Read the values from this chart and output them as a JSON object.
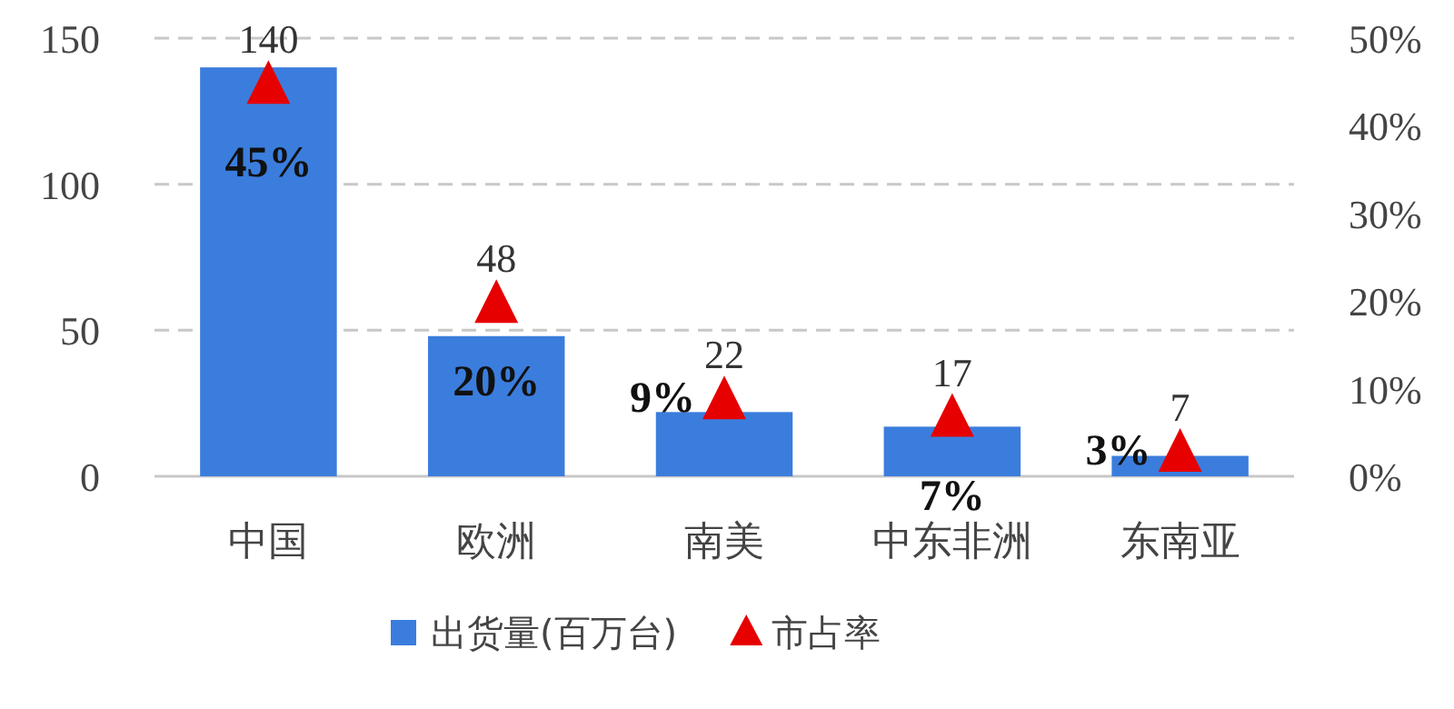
{
  "chart_data": {
    "type": "bar",
    "categories": [
      "中国",
      "欧洲",
      "南美",
      "中东非洲",
      "东南亚"
    ],
    "series": [
      {
        "name": "出货量(百万台)",
        "color": "#3b7ddd",
        "values": [
          140,
          48,
          22,
          17,
          7
        ],
        "value_labels": [
          "140",
          "48",
          "22",
          "17",
          "7"
        ]
      },
      {
        "name": "市占率",
        "type": "scatter",
        "axis": "y2",
        "marker": "triangle",
        "color": "#e60000",
        "values": [
          45,
          20,
          9,
          7,
          3
        ],
        "value_labels": [
          "45%",
          "20%",
          "9%",
          "7%",
          "3%"
        ]
      }
    ],
    "ylim": [
      0,
      150
    ],
    "yticks": [
      0,
      50,
      100,
      150
    ],
    "y2lim": [
      0,
      50
    ],
    "y2ticks": [
      {
        "value": 0,
        "label": "0%"
      },
      {
        "value": 10,
        "label": "10%"
      },
      {
        "value": 20,
        "label": "20%"
      },
      {
        "value": 30,
        "label": "30%"
      },
      {
        "value": 40,
        "label": "40%"
      },
      {
        "value": 50,
        "label": "50%"
      }
    ],
    "grid": "y",
    "legend": "bottom"
  }
}
